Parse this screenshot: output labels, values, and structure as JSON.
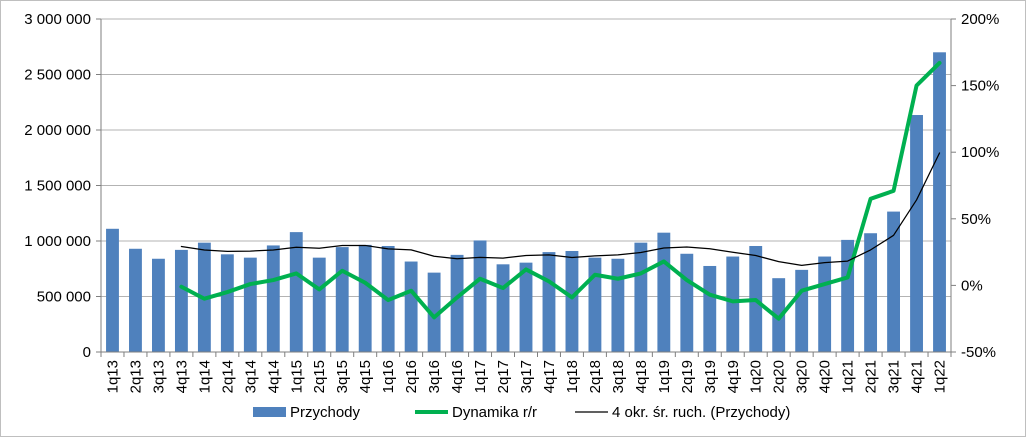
{
  "chart_data": {
    "type": "bar+line",
    "categories": [
      "1q13",
      "2q13",
      "3q13",
      "4q13",
      "1q14",
      "2q14",
      "3q14",
      "4q14",
      "1q15",
      "2q15",
      "3q15",
      "4q15",
      "1q16",
      "2q16",
      "3q16",
      "4q16",
      "1q17",
      "2q17",
      "3q17",
      "4q17",
      "1q18",
      "2q18",
      "3q18",
      "4q18",
      "1q19",
      "2q19",
      "3q19",
      "4q19",
      "1q20",
      "2q20",
      "3q20",
      "4q20",
      "1q21",
      "2q21",
      "3q21",
      "4q21",
      "1q22"
    ],
    "series": [
      {
        "name": "Przychody",
        "kind": "bar",
        "axis": "left",
        "color": "#4f81bd",
        "values": [
          1110000,
          930000,
          840000,
          920000,
          985000,
          880000,
          850000,
          960000,
          1080000,
          850000,
          945000,
          965000,
          955000,
          815000,
          715000,
          875000,
          1005000,
          790000,
          805000,
          900000,
          910000,
          850000,
          840000,
          985000,
          1075000,
          885000,
          775000,
          860000,
          955000,
          665000,
          740000,
          860000,
          1010000,
          1070000,
          1265000,
          2135000,
          2700000
        ]
      },
      {
        "name": "Dynamika r/r",
        "kind": "line",
        "axis": "right",
        "color": "#00b050",
        "values": [
          null,
          null,
          null,
          -0.01,
          -0.1,
          -0.05,
          0.01,
          0.04,
          0.09,
          -0.03,
          0.11,
          0.02,
          -0.11,
          -0.04,
          -0.24,
          -0.09,
          0.05,
          -0.02,
          0.12,
          0.03,
          -0.09,
          0.08,
          0.05,
          0.09,
          0.18,
          0.04,
          -0.07,
          -0.12,
          -0.11,
          -0.25,
          -0.04,
          0.01,
          0.06,
          0.65,
          0.71,
          1.5,
          1.67
        ]
      },
      {
        "name": "4 okr. śr. ruch. (Przychody)",
        "kind": "line",
        "axis": "left",
        "color": "#000000",
        "values": [
          null,
          null,
          null,
          950000,
          919000,
          906000,
          909000,
          919000,
          944000,
          935000,
          959000,
          960000,
          929000,
          920000,
          863000,
          840000,
          853000,
          846000,
          869000,
          875000,
          851000,
          866000,
          875000,
          896000,
          937000,
          946000,
          930000,
          899000,
          869000,
          814000,
          780000,
          805000,
          819000,
          920000,
          1051000,
          1370000,
          1793000
        ]
      }
    ],
    "left_axis": {
      "ylim": [
        0,
        3000000
      ],
      "ticks": [
        0,
        500000,
        1000000,
        1500000,
        2000000,
        2500000,
        3000000
      ],
      "tick_labels": [
        "0",
        "500 000",
        "1 000 000",
        "1 500 000",
        "2 000 000",
        "2 500 000",
        "3 000 000"
      ]
    },
    "right_axis": {
      "ylim": [
        -0.5,
        2.0
      ],
      "ticks": [
        -0.5,
        0,
        0.5,
        1.0,
        1.5,
        2.0
      ],
      "tick_labels": [
        "-50%",
        "0%",
        "50%",
        "100%",
        "150%",
        "200%"
      ]
    },
    "grid": "horizontal",
    "legend": {
      "placement": "bottom",
      "entries": [
        "Przychody",
        "Dynamika r/r",
        "4 okr. śr. ruch. (Przychody)"
      ]
    }
  }
}
